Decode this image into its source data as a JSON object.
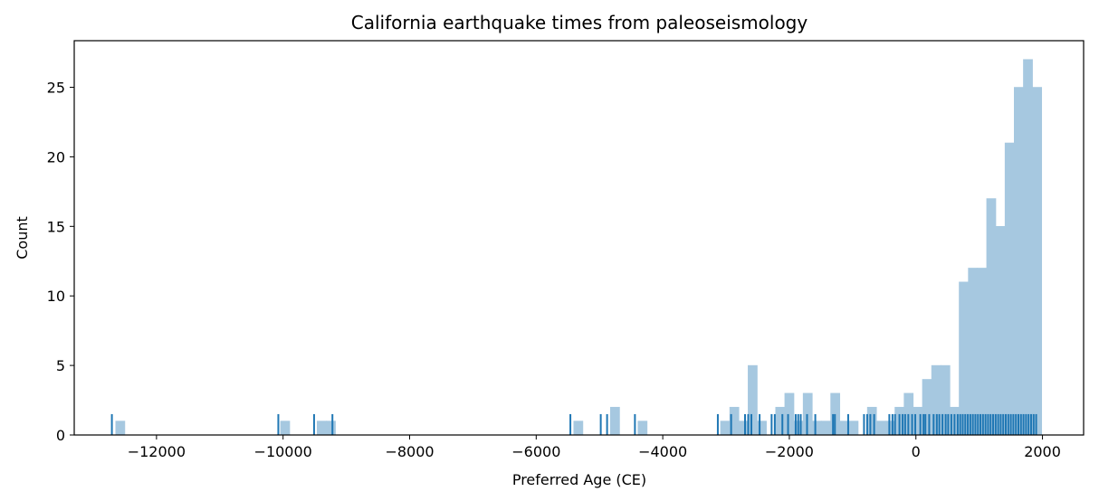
{
  "chart_data": {
    "type": "bar",
    "title": "California earthquake times from paleoseismology",
    "xlabel": "Preferred Age (CE)",
    "ylabel": "Count",
    "xlim": [
      -13300,
      2650
    ],
    "ylim": [
      0,
      28.35
    ],
    "xticks": [
      -12000,
      -10000,
      -8000,
      -6000,
      -4000,
      -2000,
      0,
      2000
    ],
    "xtick_labels": [
      "−12000",
      "−10000",
      "−8000",
      "−6000",
      "−4000",
      "−2000",
      "0",
      "2000"
    ],
    "yticks": [
      0,
      5,
      10,
      15,
      20,
      25
    ],
    "ytick_labels": [
      "0",
      "5",
      "10",
      "15",
      "20",
      "25"
    ],
    "grid": false,
    "bar_color": "#a6c8e0",
    "rug_color": "#1f77b4",
    "bin_width": 145,
    "bins": [
      {
        "x": -12645,
        "count": 1
      },
      {
        "x": -10040,
        "count": 1
      },
      {
        "x": -9462,
        "count": 1
      },
      {
        "x": -9317,
        "count": 1
      },
      {
        "x": -5407,
        "count": 1
      },
      {
        "x": -4827,
        "count": 2
      },
      {
        "x": -4392,
        "count": 1
      },
      {
        "x": -3087,
        "count": 1
      },
      {
        "x": -2942,
        "count": 2
      },
      {
        "x": -2797,
        "count": 1
      },
      {
        "x": -2652,
        "count": 5
      },
      {
        "x": -2507,
        "count": 1
      },
      {
        "x": -2217,
        "count": 2
      },
      {
        "x": -2072,
        "count": 3
      },
      {
        "x": -1927,
        "count": 1
      },
      {
        "x": -1782,
        "count": 3
      },
      {
        "x": -1637,
        "count": 1
      },
      {
        "x": -1492,
        "count": 1
      },
      {
        "x": -1347,
        "count": 3
      },
      {
        "x": -1202,
        "count": 1
      },
      {
        "x": -1057,
        "count": 1
      },
      {
        "x": -767,
        "count": 2
      },
      {
        "x": -622,
        "count": 1
      },
      {
        "x": -477,
        "count": 1
      },
      {
        "x": -332,
        "count": 2
      },
      {
        "x": -187,
        "count": 3
      },
      {
        "x": -42,
        "count": 2
      },
      {
        "x": 103,
        "count": 4
      },
      {
        "x": 248,
        "count": 5
      },
      {
        "x": 393,
        "count": 5
      },
      {
        "x": 538,
        "count": 2
      },
      {
        "x": 683,
        "count": 11
      },
      {
        "x": 828,
        "count": 12
      },
      {
        "x": 973,
        "count": 12
      },
      {
        "x": 1118,
        "count": 17
      },
      {
        "x": 1263,
        "count": 15
      },
      {
        "x": 1408,
        "count": 21
      },
      {
        "x": 1553,
        "count": 25
      },
      {
        "x": 1698,
        "count": 27
      },
      {
        "x": 1843,
        "count": 25
      }
    ],
    "rug_x": [
      -12705,
      -10075,
      -9510,
      -9220,
      -5460,
      -4980,
      -4880,
      -4440,
      -3130,
      -2920,
      -2700,
      -2650,
      -2600,
      -2470,
      -2280,
      -2230,
      -2110,
      -2020,
      -1900,
      -1860,
      -1820,
      -1720,
      -1590,
      -1310,
      -1280,
      -1070,
      -820,
      -770,
      -720,
      -660,
      -420,
      -370,
      -330,
      -260,
      -210,
      -170,
      -120,
      -60,
      -10,
      70,
      120,
      150,
      210,
      280,
      330,
      370,
      420,
      470,
      510,
      560,
      610,
      660,
      700,
      740,
      780,
      820,
      860,
      900,
      940,
      980,
      1020,
      1060,
      1100,
      1140,
      1180,
      1220,
      1260,
      1300,
      1340,
      1380,
      1420,
      1460,
      1500,
      1540,
      1580,
      1620,
      1660,
      1700,
      1740,
      1780,
      1820,
      1860,
      1900
    ]
  }
}
